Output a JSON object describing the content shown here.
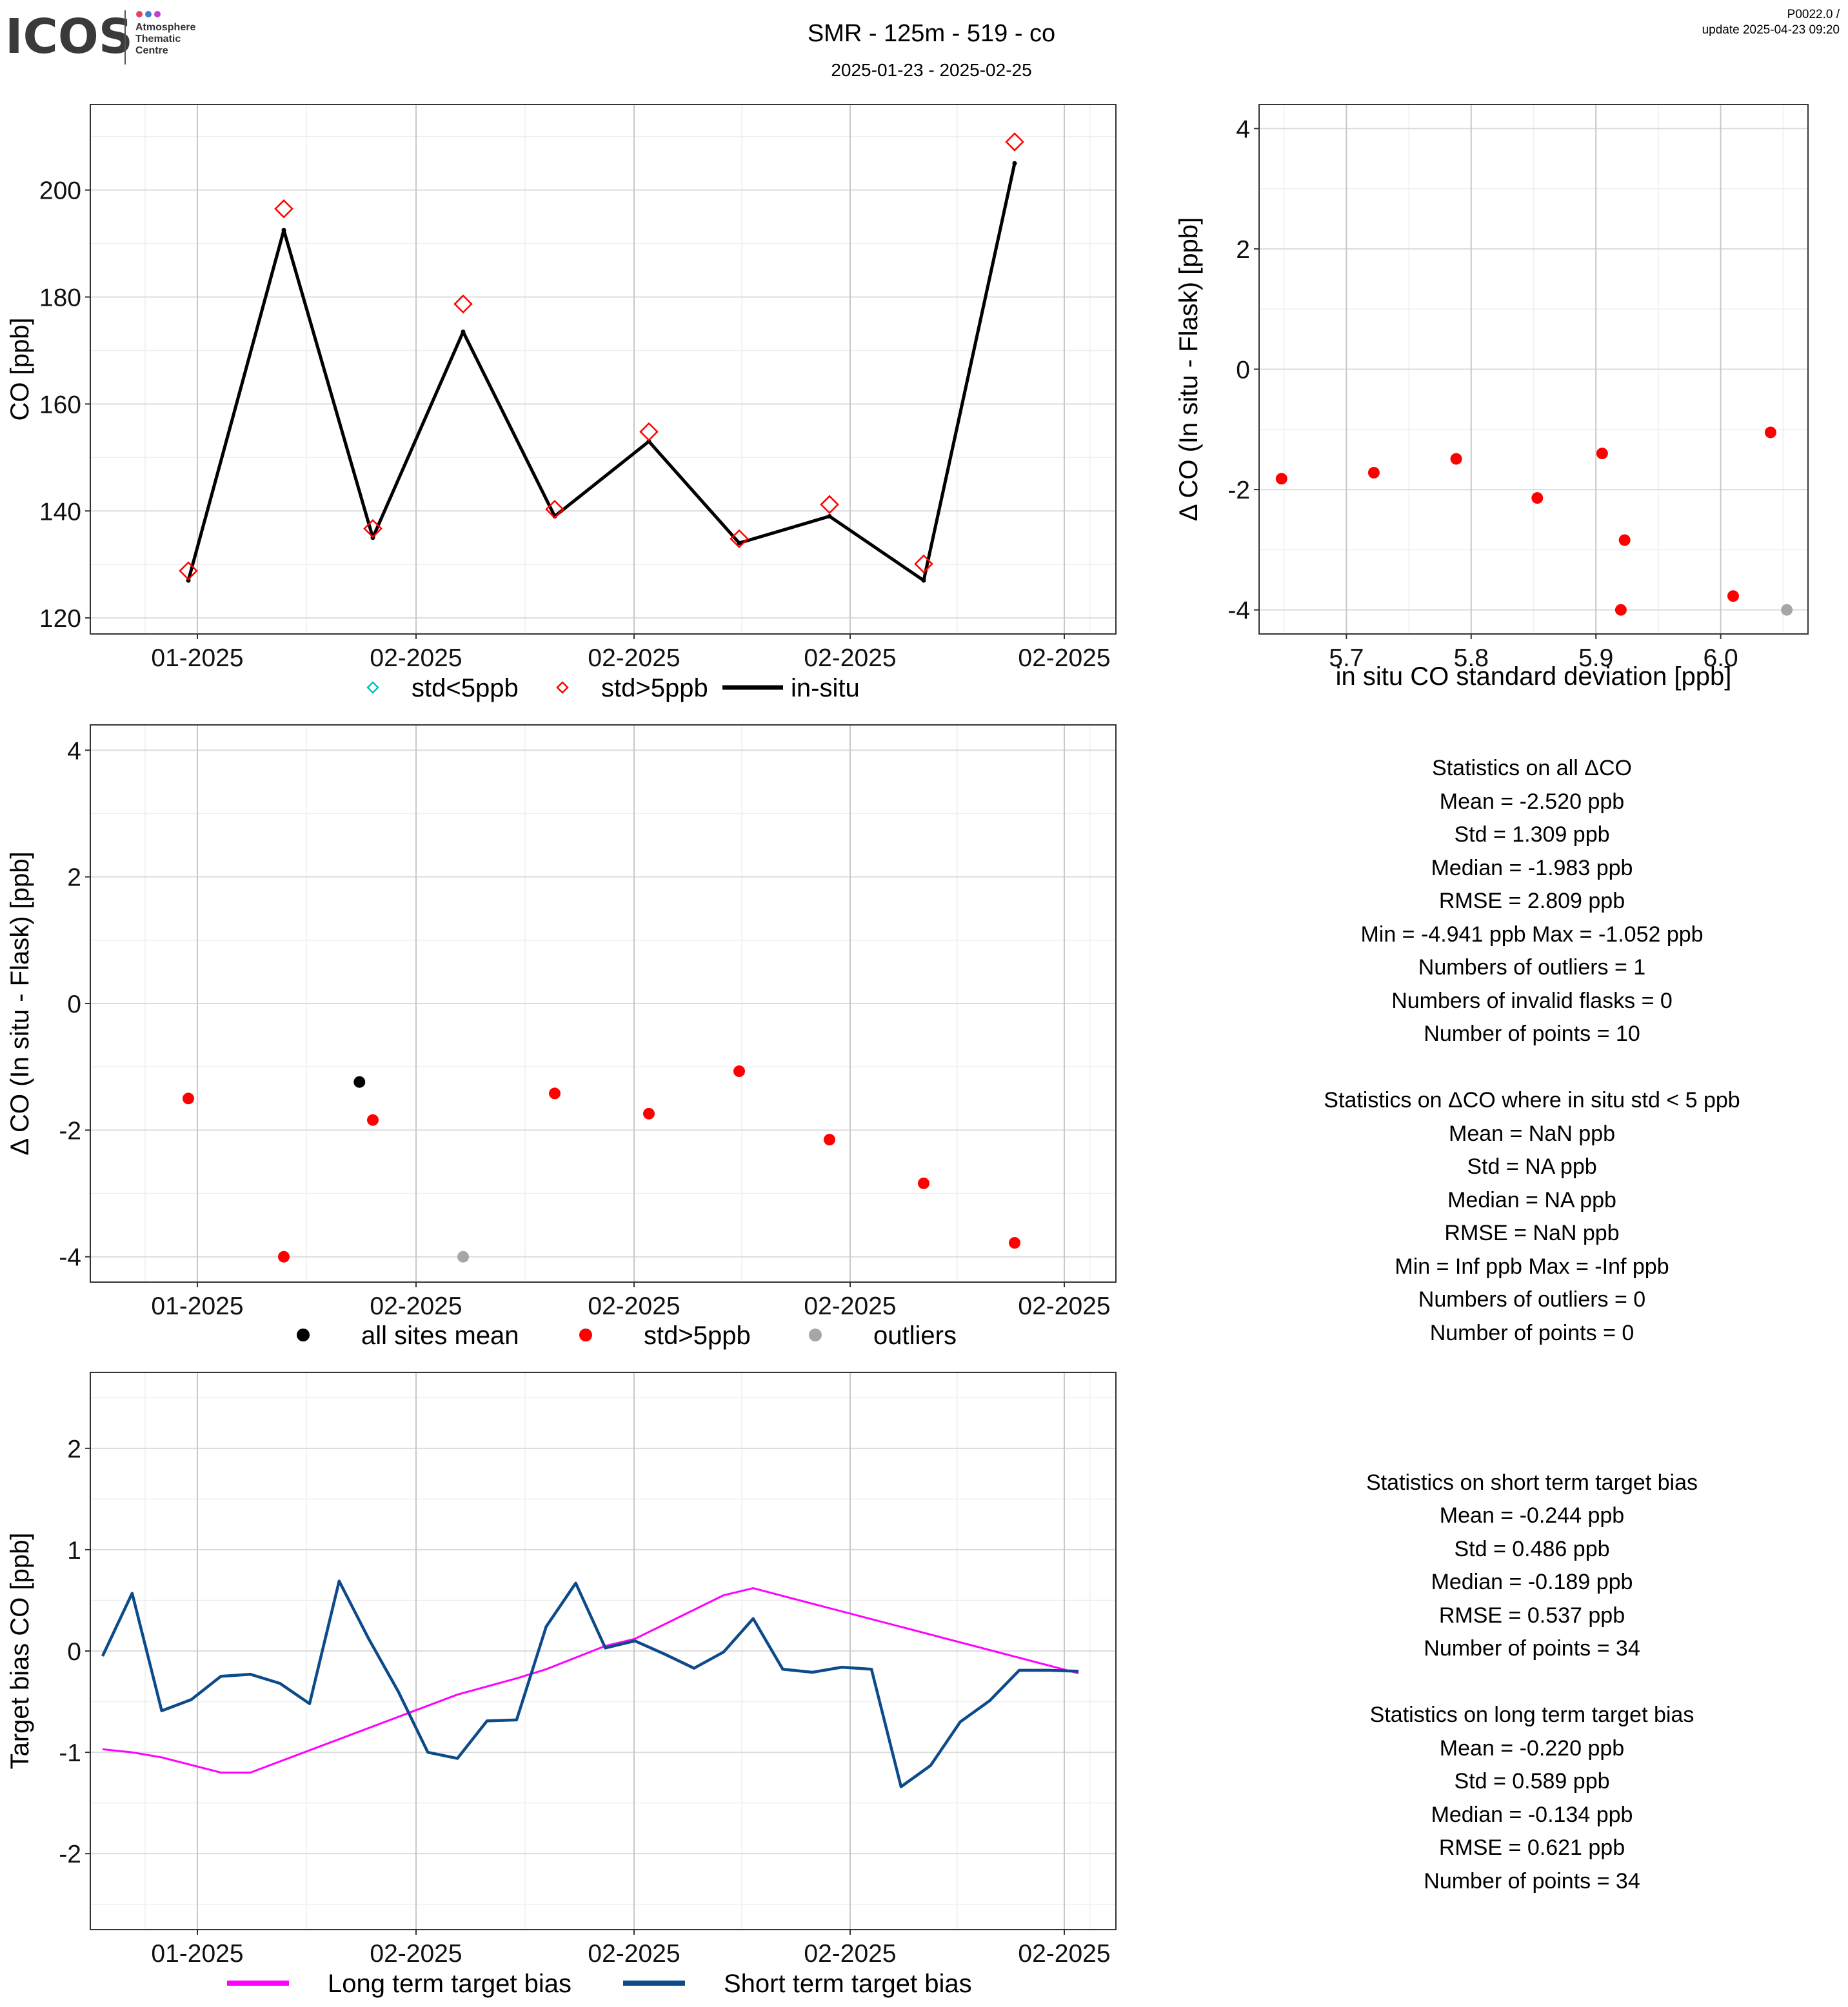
{
  "header": {
    "logo": {
      "word": "ICOS",
      "sub": [
        "Atmosphere",
        "Thematic",
        "Centre"
      ]
    },
    "title": "SMR - 125m - 519 - co",
    "subtitle": "2025-01-23 - 2025-02-25",
    "version": "P0022.0 /",
    "update": "update  2025-04-23 09:20"
  },
  "colors": {
    "flask": "#ff0000",
    "insitu": "#000000",
    "std_lt5": "#00bfc4",
    "outlier": "#a6a6a6",
    "long_bias": "#ff00ff",
    "short_bias": "#0c4a8a"
  },
  "chart_data": [
    {
      "id": "co-timeseries",
      "type": "line",
      "ylabel": "CO [ppb]",
      "xticks": [
        "01-2025",
        "02-2025",
        "02-2025",
        "02-2025",
        "02-2025"
      ],
      "ylim": [
        117,
        216
      ],
      "yticks": [
        120,
        140,
        160,
        180,
        200
      ],
      "grid": true,
      "legend": {
        "position": "bottom",
        "items": [
          "std<5ppb",
          "std>5ppb",
          "in-situ"
        ]
      },
      "series": [
        {
          "name": "in-situ",
          "x": [
            1,
            2,
            3,
            4,
            5,
            6,
            7,
            8,
            9,
            10
          ],
          "values": [
            127.0,
            192.5,
            135.0,
            173.5,
            139.0,
            153.0,
            134.0,
            139.0,
            127.0,
            205.0
          ]
        },
        {
          "name": "std>5ppb",
          "x": [
            1,
            2,
            3,
            4,
            5,
            6,
            7,
            8,
            9,
            10
          ],
          "values": [
            128.8,
            196.5,
            136.7,
            178.7,
            140.3,
            154.8,
            134.8,
            141.2,
            130.1,
            209.0
          ]
        }
      ]
    },
    {
      "id": "dco-vs-std",
      "type": "scatter",
      "xlabel": "in situ CO standard deviation [ppb]",
      "ylabel": "Δ CO (In situ - Flask) [ppb]",
      "xlim": [
        5.63,
        6.07
      ],
      "xticks": [
        5.7,
        5.8,
        5.9,
        6.0
      ],
      "xtick_labels": [
        "5.7",
        "5.8",
        "5.9",
        "6.0"
      ],
      "ylim": [
        -4.4,
        4.4
      ],
      "yticks": [
        -4,
        -2,
        0,
        2,
        4
      ],
      "reference_lines": [
        -2,
        2
      ],
      "grid": true,
      "series": [
        {
          "name": "std>5ppb",
          "x": [
            5.648,
            5.722,
            5.788,
            5.853,
            5.905,
            5.923,
            5.92,
            6.01,
            6.04
          ],
          "values": [
            -1.82,
            -1.72,
            -1.49,
            -2.14,
            -1.4,
            -2.84,
            -4.0,
            -3.77,
            -1.05
          ]
        },
        {
          "name": "outliers",
          "x": [
            6.053
          ],
          "values": [
            -4.0
          ]
        }
      ]
    },
    {
      "id": "dco-timeseries",
      "type": "scatter",
      "ylabel": "Δ CO (In situ - Flask) [ppb]",
      "xticks": [
        "01-2025",
        "02-2025",
        "02-2025",
        "02-2025",
        "02-2025"
      ],
      "ylim": [
        -4.4,
        4.4
      ],
      "yticks": [
        -4,
        -2,
        0,
        2,
        4
      ],
      "reference_lines": [
        -2,
        2
      ],
      "grid": true,
      "legend": {
        "position": "bottom",
        "items": [
          "all sites mean",
          "std>5ppb",
          "outliers"
        ]
      },
      "series": [
        {
          "name": "std>5ppb",
          "x": [
            1,
            2,
            3,
            5,
            6,
            7,
            8,
            9,
            10
          ],
          "values": [
            -1.5,
            -4.0,
            -1.84,
            -1.42,
            -1.74,
            -1.07,
            -2.15,
            -2.84,
            -3.78
          ]
        },
        {
          "name": "all sites mean",
          "x": [
            2.85
          ],
          "values": [
            -1.24
          ]
        },
        {
          "name": "outliers",
          "x": [
            4.0
          ],
          "values": [
            -4.0
          ]
        }
      ]
    },
    {
      "id": "target-bias",
      "type": "line",
      "ylabel": "Target bias CO [ppb]",
      "xticks": [
        "01-2025",
        "02-2025",
        "02-2025",
        "02-2025",
        "02-2025"
      ],
      "ylim": [
        -2.75,
        2.75
      ],
      "yticks": [
        -2,
        -1,
        0,
        1,
        2
      ],
      "reference_lines": [
        -2,
        2
      ],
      "grid": true,
      "legend": {
        "position": "bottom",
        "items": [
          "Long term target bias",
          "Short term target bias"
        ]
      },
      "series": [
        {
          "name": "Long term target bias",
          "x": [
            1,
            2,
            3,
            5,
            6,
            8,
            9,
            13,
            15,
            16,
            18,
            19,
            22,
            23,
            34
          ],
          "values": [
            -0.97,
            -1.0,
            -1.05,
            -1.2,
            -1.2,
            -0.98,
            -0.87,
            -0.43,
            -0.27,
            -0.18,
            0.05,
            0.12,
            0.55,
            0.62,
            -0.22
          ]
        },
        {
          "name": "Short term target bias",
          "x": [
            1,
            2,
            3,
            4,
            5,
            6,
            7,
            8,
            9,
            10,
            11,
            12,
            13,
            14,
            15,
            16,
            17,
            18,
            19,
            20,
            21,
            22,
            23,
            24,
            25,
            26,
            27,
            28,
            29,
            30,
            31,
            32,
            33,
            34
          ],
          "values": [
            -0.05,
            0.57,
            -0.59,
            -0.48,
            -0.25,
            -0.23,
            -0.32,
            -0.52,
            0.69,
            0.12,
            -0.4,
            -1.0,
            -1.06,
            -0.69,
            -0.68,
            0.24,
            0.67,
            0.03,
            0.1,
            -0.03,
            -0.17,
            -0.01,
            0.32,
            -0.18,
            -0.21,
            -0.16,
            -0.18,
            -1.34,
            -1.13,
            -0.7,
            -0.49,
            -0.19,
            -0.19,
            -0.2
          ]
        }
      ]
    }
  ],
  "stats": {
    "all": [
      "Statistics on all ΔCO",
      "Mean =  -2.520 ppb",
      "Std =  1.309 ppb",
      "Median =  -1.983 ppb",
      "RMSE =  2.809 ppb",
      "Min =  -4.941 ppb Max =  -1.052 ppb",
      "Numbers of outliers =  1",
      "Numbers of invalid flasks =  0",
      "Number of points =  10"
    ],
    "lt5": [
      "Statistics on ΔCO where in situ std < 5 ppb",
      "Mean =  NaN ppb",
      "Std =  NA ppb",
      "Median =  NA ppb",
      "RMSE =  NaN ppb",
      "Min =  Inf ppb Max =  -Inf ppb",
      "Numbers of outliers =  0",
      "Number of points =  0"
    ],
    "short": [
      "Statistics on short term target bias",
      "Mean =  -0.244 ppb",
      "Std =  0.486 ppb",
      "Median =  -0.189 ppb",
      "RMSE =  0.537 ppb",
      "Number of points =  34"
    ],
    "long": [
      "Statistics on long term target bias",
      "Mean =  -0.220 ppb",
      "Std =  0.589 ppb",
      "Median =  -0.134 ppb",
      "RMSE =  0.621 ppb",
      "Number of points =  34"
    ]
  }
}
